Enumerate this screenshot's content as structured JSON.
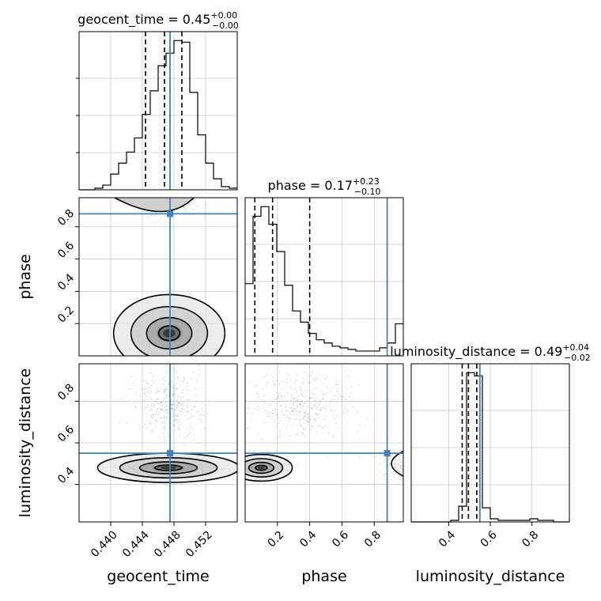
{
  "chart_data": {
    "type": "corner",
    "truth_color": "#4682b4",
    "parameters": [
      {
        "name": "geocent_time",
        "xlabel": "geocent_time",
        "range": [
          0.436,
          0.456
        ],
        "ticks": [
          0.44,
          0.444,
          0.448,
          0.452
        ],
        "tick_labels": [
          "0.440",
          "0.444",
          "0.448",
          "0.452"
        ],
        "title_main": "geocent_time = 0.45",
        "title_sup": "+0.00",
        "title_sub": "−0.00",
        "quantiles": [
          0.4444,
          0.4468,
          0.449
        ],
        "truth": 0.4475,
        "hist_edges_start": 0.436,
        "hist_bin_width": 0.001,
        "hist_counts": [
          0,
          0,
          1,
          3,
          10,
          17,
          24,
          33,
          48,
          63,
          79,
          87,
          95,
          94,
          62,
          35,
          17,
          7,
          2,
          1
        ]
      },
      {
        "name": "phase",
        "ylabel": "phase",
        "xlabel": "phase",
        "range": [
          0.0,
          0.98
        ],
        "ticks": [
          0.2,
          0.4,
          0.6,
          0.8
        ],
        "tick_labels": [
          "0.2",
          "0.4",
          "0.6",
          "0.8"
        ],
        "title_main": "phase = 0.17",
        "title_sup": "+0.23",
        "title_sub": "−0.10",
        "quantiles": [
          0.06,
          0.17,
          0.4
        ],
        "truth": 0.88,
        "hist_edges_start": 0.0,
        "hist_bin_width": 0.049,
        "hist_counts": [
          45,
          87,
          93,
          82,
          65,
          44,
          28,
          21,
          14,
          10,
          8,
          6,
          5,
          4,
          3,
          3,
          3,
          5,
          8,
          20
        ]
      },
      {
        "name": "luminosity_distance",
        "ylabel": "luminosity_distance",
        "xlabel": "luminosity_distance",
        "range": [
          0.22,
          0.98
        ],
        "ticks": [
          0.4,
          0.6,
          0.8
        ],
        "tick_labels": [
          "0.4",
          "0.6",
          "0.8"
        ],
        "ytick_labels": [
          "0.4",
          "0.6",
          "0.8"
        ],
        "title_main": "luminosity_distance = 0.49",
        "title_sup": "+0.04",
        "title_sub": "−0.02",
        "quantiles": [
          0.465,
          0.495,
          0.535
        ],
        "truth": 0.55,
        "hist_edges_start": 0.22,
        "hist_bin_width": 0.038,
        "hist_counts": [
          0,
          0,
          0,
          0,
          0,
          1,
          10,
          95,
          93,
          9,
          2,
          1,
          1,
          1,
          1,
          2,
          1,
          1,
          0,
          0
        ]
      }
    ],
    "phase_yticks": [
      "0.2",
      "0.4",
      "0.6",
      "0.8"
    ],
    "grid": true
  }
}
